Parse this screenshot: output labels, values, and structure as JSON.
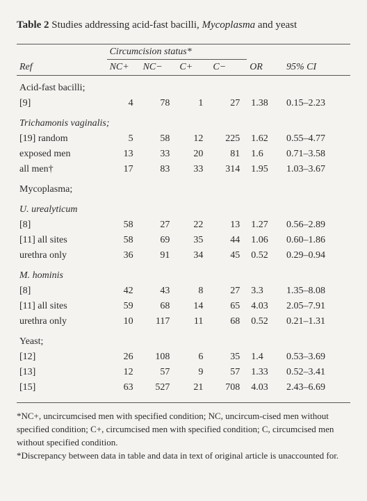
{
  "caption": {
    "label": "Table 2",
    "text_before_italic": "Studies addressing acid-fast bacilli, ",
    "italic_word": "Mycoplasma",
    "text_after_italic": " and yeast"
  },
  "headers": {
    "spanner": "Circumcision status*",
    "ref": "Ref",
    "nc_plus": "NC+",
    "nc_minus": "NC−",
    "c_plus": "C+",
    "c_minus": "C−",
    "or": "OR",
    "ci": "95% CI"
  },
  "sections": [
    {
      "label": "Acid-fast bacilli;",
      "label_italic": false,
      "rows": [
        {
          "ref": "[9]",
          "nc_plus": "4",
          "nc_minus": "78",
          "c_plus": "1",
          "c_minus": "27",
          "or": "1.38",
          "ci": "0.15–2.23"
        }
      ]
    },
    {
      "label": "Trichamonis vaginalis;",
      "label_italic": true,
      "rows": [
        {
          "ref": "[19] random",
          "nc_plus": "5",
          "nc_minus": "58",
          "c_plus": "12",
          "c_minus": "225",
          "or": "1.62",
          "ci": "0.55–4.77"
        },
        {
          "ref": "exposed men",
          "nc_plus": "13",
          "nc_minus": "33",
          "c_plus": "20",
          "c_minus": "81",
          "or": "1.6",
          "ci": "0.71–3.58"
        },
        {
          "ref": "all men†",
          "nc_plus": "17",
          "nc_minus": "83",
          "c_plus": "33",
          "c_minus": "314",
          "or": "1.95",
          "ci": "1.03–3.67"
        }
      ]
    },
    {
      "label": "Mycoplasma;",
      "label_italic": false,
      "rows": []
    },
    {
      "label": "U. urealyticum",
      "label_italic": true,
      "rows": [
        {
          "ref": "[8]",
          "nc_plus": "58",
          "nc_minus": "27",
          "c_plus": "22",
          "c_minus": "13",
          "or": "1.27",
          "ci": "0.56–2.89"
        },
        {
          "ref": "[11] all sites",
          "nc_plus": "58",
          "nc_minus": "69",
          "c_plus": "35",
          "c_minus": "44",
          "or": "1.06",
          "ci": "0.60–1.86"
        },
        {
          "ref": "urethra only",
          "nc_plus": "36",
          "nc_minus": "91",
          "c_plus": "34",
          "c_minus": "45",
          "or": "0.52",
          "ci": "0.29–0.94"
        }
      ]
    },
    {
      "label": "M. hominis",
      "label_italic": true,
      "rows": [
        {
          "ref": "[8]",
          "nc_plus": "42",
          "nc_minus": "43",
          "c_plus": "8",
          "c_minus": "27",
          "or": "3.3",
          "ci": "1.35–8.08"
        },
        {
          "ref": "[11] all sites",
          "nc_plus": "59",
          "nc_minus": "68",
          "c_plus": "14",
          "c_minus": "65",
          "or": "4.03",
          "ci": "2.05–7.91"
        },
        {
          "ref": "urethra only",
          "nc_plus": "10",
          "nc_minus": "117",
          "c_plus": "11",
          "c_minus": "68",
          "or": "0.52",
          "ci": "0.21–1.31"
        }
      ]
    },
    {
      "label": "Yeast;",
      "label_italic": false,
      "rows": [
        {
          "ref": "[12]",
          "nc_plus": "26",
          "nc_minus": "108",
          "c_plus": "6",
          "c_minus": "35",
          "or": "1.4",
          "ci": "0.53–3.69"
        },
        {
          "ref": "[13]",
          "nc_plus": "12",
          "nc_minus": "57",
          "c_plus": "9",
          "c_minus": "57",
          "or": "1.33",
          "ci": "0.52–3.41"
        },
        {
          "ref": "[15]",
          "nc_plus": "63",
          "nc_minus": "527",
          "c_plus": "21",
          "c_minus": "708",
          "or": "4.03",
          "ci": "2.43–6.69"
        }
      ]
    }
  ],
  "footnotes": {
    "a": "*NC+, uncircumcised men with specified condition; NC, uncircum-cised men without specified condition; C+, circumcised men with specified condition; C, circumcised men without specified condition.",
    "b": "*Discrepancy between data in table and data in text of original article is unaccounted for."
  },
  "style": {
    "bg": "#f4f3f0",
    "text": "#2a2a2a",
    "rule": "#555555",
    "font_size_body": 14,
    "font_size_caption": 15,
    "font_size_footnote": 13,
    "col_widths_pct": [
      27,
      10,
      11,
      10,
      11,
      11,
      20
    ]
  }
}
